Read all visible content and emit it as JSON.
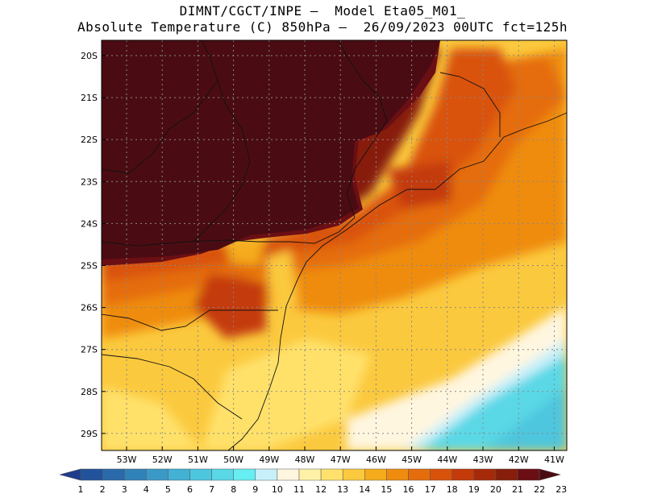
{
  "header": {
    "line1": "DIMNT/CGCT/INPE –  Model Eta05_M01_",
    "line2": "Absolute Temperature (C) 850hPa –  26/09/2023 00UTC fct=125h"
  },
  "map": {
    "latitude_labels": [
      "20S",
      "21S",
      "22S",
      "23S",
      "24S",
      "25S",
      "26S",
      "27S",
      "28S",
      "29S"
    ],
    "longitude_labels": [
      "53W",
      "52W",
      "51W",
      "50W",
      "49W",
      "48W",
      "47W",
      "46W",
      "45W",
      "44W",
      "43W",
      "42W",
      "41W"
    ],
    "grid": true
  },
  "colorbar": {
    "labels": [
      "1",
      "2",
      "3",
      "4",
      "5",
      "6",
      "7",
      "8",
      "9",
      "10",
      "11",
      "12",
      "13",
      "14",
      "15",
      "16",
      "17",
      "18",
      "19",
      "20",
      "21",
      "22",
      "23"
    ],
    "colors": [
      "#1f3d8a",
      "#23529c",
      "#2a6aaa",
      "#3182b8",
      "#3a99c6",
      "#42b1d4",
      "#4dc6de",
      "#5ad8e6",
      "#66eef2",
      "#c8f0fa",
      "#fff6e0",
      "#fff2a8",
      "#ffe16b",
      "#fbc93e",
      "#f5ab1c",
      "#ef8c0e",
      "#e56d0c",
      "#d9520b",
      "#c43a0a",
      "#a52a0a",
      "#871e0c",
      "#6b0f14",
      "#4a0c12"
    ]
  }
}
